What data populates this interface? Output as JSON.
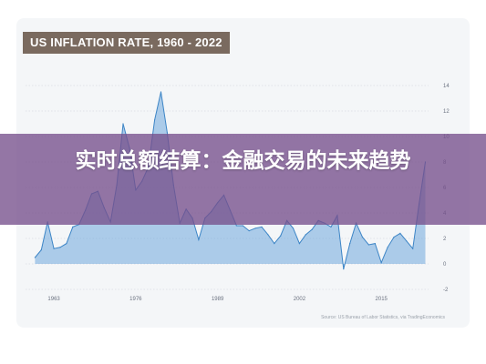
{
  "banner": {
    "text": "实时总额结算：金融交易的未来趋势"
  },
  "chart_data": {
    "type": "area",
    "title": "US INFLATION RATE, 1960 - 2022",
    "source": "Source: US Bureau of Labor Statistics, via TradingEconomics",
    "xlabel": "",
    "ylabel": "",
    "x_ticks": [
      1963,
      1976,
      1989,
      2002,
      2015
    ],
    "y_ticks": [
      -2,
      0,
      2,
      4,
      6,
      8,
      10,
      12,
      14
    ],
    "xlim": [
      1958.5,
      2022.5
    ],
    "ylim": [
      -2,
      15
    ],
    "grid": true,
    "color": "#6fa8dc",
    "x": [
      1960,
      1961,
      1962,
      1963,
      1964,
      1965,
      1966,
      1967,
      1968,
      1969,
      1970,
      1971,
      1972,
      1973,
      1974,
      1975,
      1976,
      1977,
      1978,
      1979,
      1980,
      1981,
      1982,
      1983,
      1984,
      1985,
      1986,
      1987,
      1988,
      1989,
      1990,
      1991,
      1992,
      1993,
      1994,
      1995,
      1996,
      1997,
      1998,
      1999,
      2000,
      2001,
      2002,
      2003,
      2004,
      2005,
      2006,
      2007,
      2008,
      2009,
      2010,
      2011,
      2012,
      2013,
      2014,
      2015,
      2016,
      2017,
      2018,
      2019,
      2020,
      2021,
      2022
    ],
    "values": [
      0.5,
      1.1,
      3.3,
      1.2,
      1.3,
      1.6,
      2.9,
      3.1,
      4.2,
      5.5,
      5.7,
      4.4,
      3.3,
      6.2,
      11.0,
      9.1,
      5.8,
      6.5,
      7.6,
      11.3,
      13.5,
      10.3,
      6.2,
      3.2,
      4.3,
      3.6,
      1.9,
      3.6,
      4.1,
      4.8,
      5.4,
      4.2,
      3.0,
      3.0,
      2.6,
      2.8,
      2.9,
      2.3,
      1.6,
      2.2,
      3.4,
      2.8,
      1.6,
      2.3,
      2.7,
      3.4,
      3.2,
      2.9,
      3.8,
      -0.4,
      1.6,
      3.2,
      2.1,
      1.5,
      1.6,
      0.1,
      1.3,
      2.1,
      2.4,
      1.8,
      1.2,
      4.7,
      8.0
    ]
  }
}
